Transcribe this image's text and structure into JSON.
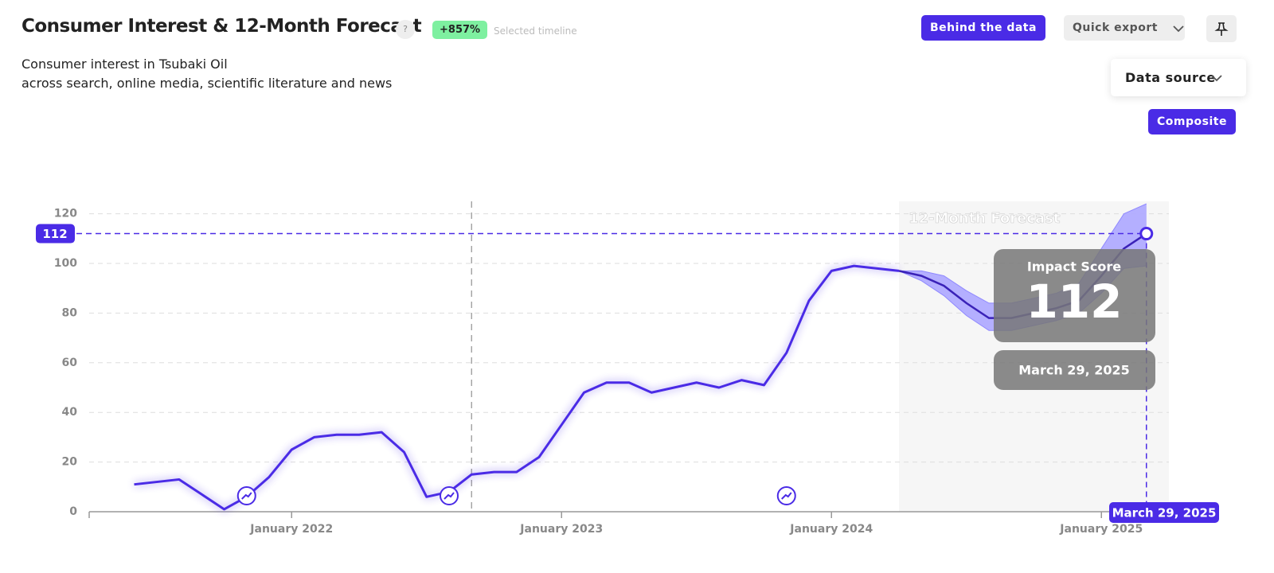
{
  "header": {
    "title": "Consumer Interest & 12-Month Forecast",
    "help": "?",
    "change": "+857%",
    "change_note": "Selected timeline",
    "subtitle_lines": [
      "Consumer interest in Tsubaki Oil",
      "across search, online media, scientific literature and news"
    ]
  },
  "controls": {
    "behind": "Behind the data",
    "export": "Quick export",
    "source": "Data source",
    "composite": "Composite"
  },
  "chart_data": {
    "type": "line",
    "x": [
      "2021-06",
      "2021-07",
      "2021-08",
      "2021-09",
      "2021-10",
      "2021-11",
      "2021-12",
      "2022-01",
      "2022-02",
      "2022-03",
      "2022-04",
      "2022-05",
      "2022-06",
      "2022-07",
      "2022-08",
      "2022-09",
      "2022-10",
      "2022-11",
      "2022-12",
      "2023-01",
      "2023-02",
      "2023-03",
      "2023-04",
      "2023-05",
      "2023-06",
      "2023-07",
      "2023-08",
      "2023-09",
      "2023-10",
      "2023-11",
      "2023-12",
      "2024-01",
      "2024-02",
      "2024-03",
      "2024-04",
      "2024-05",
      "2024-06",
      "2024-07",
      "2024-08",
      "2024-09",
      "2024-10",
      "2024-11",
      "2024-12",
      "2025-01",
      "2025-02",
      "2025-03"
    ],
    "values": [
      11,
      12,
      13,
      7,
      1,
      6,
      14,
      25,
      30,
      31,
      31,
      32,
      24,
      6,
      8,
      15,
      16,
      16,
      22,
      35,
      48,
      52,
      52,
      48,
      50,
      52,
      50,
      53,
      51,
      64,
      85,
      97,
      99,
      98,
      97,
      null,
      null,
      null,
      null,
      null,
      null,
      null,
      null,
      null,
      null,
      null
    ],
    "forecast_values": [
      null,
      null,
      null,
      null,
      null,
      null,
      null,
      null,
      null,
      null,
      null,
      null,
      null,
      null,
      null,
      null,
      null,
      null,
      null,
      null,
      null,
      null,
      null,
      null,
      null,
      null,
      null,
      null,
      null,
      null,
      null,
      null,
      null,
      null,
      97,
      95,
      91,
      84,
      78,
      78,
      80,
      82,
      85,
      95,
      106,
      112
    ],
    "forecast_upper": [
      null,
      null,
      null,
      null,
      null,
      null,
      null,
      null,
      null,
      null,
      null,
      null,
      null,
      null,
      null,
      null,
      null,
      null,
      null,
      null,
      null,
      null,
      null,
      null,
      null,
      null,
      null,
      null,
      null,
      null,
      null,
      null,
      null,
      null,
      97,
      97,
      95,
      89,
      84,
      84,
      86,
      88,
      92,
      106,
      120,
      124
    ],
    "forecast_lower": [
      null,
      null,
      null,
      null,
      null,
      null,
      null,
      null,
      null,
      null,
      null,
      null,
      null,
      null,
      null,
      null,
      null,
      null,
      null,
      null,
      null,
      null,
      null,
      null,
      null,
      null,
      null,
      null,
      null,
      null,
      null,
      null,
      null,
      null,
      97,
      93,
      87,
      79,
      73,
      73,
      75,
      77,
      80,
      88,
      98,
      99
    ],
    "color": "#4a2be6",
    "band_color": "#8f88ff",
    "xlim": [
      "2021-04",
      "2025-04"
    ],
    "xticks": [
      {
        "value": "2022-01",
        "label": "January 2022"
      },
      {
        "value": "2023-01",
        "label": "January 2023"
      },
      {
        "value": "2024-01",
        "label": "January 2024"
      },
      {
        "value": "2025-01",
        "label": "January 2025"
      }
    ],
    "ylim": [
      0,
      125
    ],
    "yticks": [
      0,
      20,
      40,
      60,
      80,
      100,
      120
    ],
    "grid": true,
    "events": [
      "2021-11",
      "2022-08",
      "2023-11"
    ],
    "selected_start": "2022-09",
    "forecast_start": "2024-04",
    "forecast_label": "12-Month Forecast",
    "highlight": 112,
    "tooltip": {
      "title": "Impact Score",
      "value": 112,
      "date": "March 29, 2025"
    }
  }
}
